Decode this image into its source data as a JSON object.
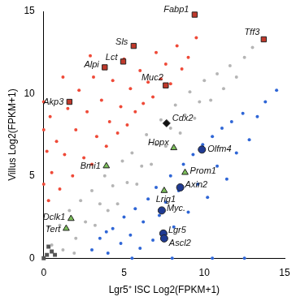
{
  "chart_data": {
    "type": "scatter",
    "x_label": "Lgr5⁺ ISC Log2(FPKM+1)",
    "y_label": "Villus Log2(FPKM+1)",
    "xlim": [
      0,
      15
    ],
    "ylim": [
      0,
      15
    ],
    "xticks": [
      0,
      5,
      10,
      15
    ],
    "yticks": [
      0,
      5,
      10,
      15
    ],
    "grid": false,
    "series": [
      {
        "color": "#ef4a38",
        "marker": "circle",
        "values": [
          [
            0.3,
            3.5
          ],
          [
            0.5,
            5.2
          ],
          [
            0.8,
            7.1
          ],
          [
            0.4,
            8.6
          ],
          [
            1.0,
            4.2
          ],
          [
            1.3,
            6.3
          ],
          [
            1.5,
            9.1
          ],
          [
            1.8,
            5.0
          ],
          [
            2.0,
            7.8
          ],
          [
            2.2,
            10.2
          ],
          [
            2.5,
            6.1
          ],
          [
            2.7,
            8.9
          ],
          [
            3.0,
            5.7
          ],
          [
            3.1,
            11.0
          ],
          [
            3.3,
            7.4
          ],
          [
            3.6,
            9.6
          ],
          [
            3.9,
            6.8
          ],
          [
            4.1,
            8.3
          ],
          [
            4.3,
            10.8
          ],
          [
            4.6,
            7.6
          ],
          [
            4.8,
            9.2
          ],
          [
            5.0,
            12.1
          ],
          [
            5.2,
            8.1
          ],
          [
            5.4,
            10.3
          ],
          [
            5.7,
            8.9
          ],
          [
            6.0,
            11.4
          ],
          [
            6.2,
            9.4
          ],
          [
            6.5,
            10.7
          ],
          [
            6.8,
            9.8
          ],
          [
            7.0,
            12.5
          ],
          [
            7.3,
            10.9
          ],
          [
            7.6,
            11.8
          ],
          [
            7.9,
            10.6
          ],
          [
            8.3,
            12.9
          ],
          [
            8.6,
            11.5
          ],
          [
            9.0,
            12.2
          ],
          [
            9.5,
            13.4
          ],
          [
            2.9,
            12.3
          ],
          [
            1.2,
            11.0
          ],
          [
            0.2,
            6.5
          ],
          [
            0.0,
            9.5
          ],
          [
            0.0,
            4.5
          ],
          [
            0.0,
            7.8
          ]
        ]
      },
      {
        "color": "#b5b5b5",
        "marker": "circle",
        "values": [
          [
            0.5,
            0.8
          ],
          [
            1.0,
            2.0
          ],
          [
            1.2,
            0.5
          ],
          [
            1.6,
            2.9
          ],
          [
            2.0,
            1.2
          ],
          [
            2.3,
            3.5
          ],
          [
            2.6,
            2.2
          ],
          [
            3.0,
            4.1
          ],
          [
            3.2,
            2.0
          ],
          [
            3.5,
            3.3
          ],
          [
            3.8,
            5.0
          ],
          [
            4.0,
            2.9
          ],
          [
            4.3,
            4.4
          ],
          [
            4.6,
            3.3
          ],
          [
            4.9,
            5.9
          ],
          [
            5.2,
            4.6
          ],
          [
            5.5,
            6.4
          ],
          [
            5.8,
            4.5
          ],
          [
            6.1,
            5.6
          ],
          [
            6.4,
            7.5
          ],
          [
            6.7,
            5.7
          ],
          [
            7.0,
            6.9
          ],
          [
            7.3,
            8.4
          ],
          [
            7.6,
            6.8
          ],
          [
            7.9,
            7.9
          ],
          [
            8.2,
            9.3
          ],
          [
            8.5,
            7.6
          ],
          [
            8.8,
            8.7
          ],
          [
            9.1,
            10.1
          ],
          [
            9.4,
            8.5
          ],
          [
            9.7,
            9.5
          ],
          [
            10.0,
            10.8
          ],
          [
            10.4,
            9.6
          ],
          [
            10.8,
            11.2
          ],
          [
            11.2,
            10.3
          ],
          [
            11.6,
            11.7
          ],
          [
            12.0,
            11.0
          ],
          [
            12.5,
            12.2
          ],
          [
            13.0,
            12.8
          ],
          [
            0.3,
            1.9
          ],
          [
            1.9,
            0.3
          ]
        ]
      },
      {
        "color": "#2f66d6",
        "marker": "circle",
        "values": [
          [
            3.0,
            0.5
          ],
          [
            3.5,
            1.2
          ],
          [
            4.0,
            0.3
          ],
          [
            4.3,
            1.8
          ],
          [
            4.8,
            0.9
          ],
          [
            5.0,
            2.5
          ],
          [
            5.4,
            1.4
          ],
          [
            5.7,
            3.0
          ],
          [
            6.0,
            0.6
          ],
          [
            6.2,
            2.2
          ],
          [
            6.5,
            3.6
          ],
          [
            6.8,
            1.1
          ],
          [
            7.0,
            4.3
          ],
          [
            7.2,
            2.6
          ],
          [
            7.6,
            3.4
          ],
          [
            7.9,
            5.0
          ],
          [
            8.1,
            1.9
          ],
          [
            8.4,
            4.1
          ],
          [
            8.7,
            5.7
          ],
          [
            9.0,
            2.8
          ],
          [
            9.3,
            6.3
          ],
          [
            9.6,
            4.5
          ],
          [
            9.9,
            6.9
          ],
          [
            10.2,
            3.7
          ],
          [
            10.5,
            7.4
          ],
          [
            10.8,
            5.6
          ],
          [
            11.1,
            7.9
          ],
          [
            11.4,
            4.8
          ],
          [
            11.7,
            8.3
          ],
          [
            12.0,
            6.4
          ],
          [
            12.4,
            8.8
          ],
          [
            12.8,
            7.2
          ],
          [
            13.3,
            8.6
          ],
          [
            13.8,
            9.5
          ],
          [
            14.5,
            10.2
          ],
          [
            5.5,
            0.0
          ],
          [
            8.0,
            0.0
          ],
          [
            10.5,
            0.0
          ],
          [
            12.5,
            0.0
          ],
          [
            3.9,
            1.6
          ]
        ]
      },
      {
        "color": "#555555",
        "marker": "square",
        "values": [
          [
            0.2,
            0.2
          ],
          [
            0.5,
            0.4
          ],
          [
            0.3,
            0.7
          ],
          [
            0.7,
            0.2
          ],
          [
            0.0,
            0.0
          ]
        ]
      },
      {
        "color": "#c0392b",
        "marker": "square",
        "labels": [
          "Fabp1",
          "Tff3",
          "Sls",
          "Lct",
          "Alpi",
          "Muc2",
          "Akp3"
        ],
        "values": [
          [
            9.4,
            14.8
          ],
          [
            13.7,
            13.3
          ],
          [
            5.6,
            12.9
          ],
          [
            4.95,
            11.95
          ],
          [
            3.8,
            11.6
          ],
          [
            7.6,
            10.5
          ],
          [
            1.6,
            9.5
          ]
        ]
      },
      {
        "color": "#111111",
        "marker": "diamond",
        "labels": [
          "Cdx2"
        ],
        "values": [
          [
            7.65,
            8.2
          ]
        ]
      },
      {
        "color": "#7cbf5a",
        "marker": "triangle",
        "labels": [
          "Hopx",
          "Bmi1",
          "Prom1",
          "Lrig1",
          "Dclk1",
          "Tert"
        ],
        "values": [
          [
            8.1,
            6.7
          ],
          [
            3.9,
            5.6
          ],
          [
            8.8,
            5.2
          ],
          [
            7.5,
            4.1
          ],
          [
            1.7,
            2.4
          ],
          [
            1.4,
            1.8
          ]
        ]
      },
      {
        "color": "#1f3a93",
        "marker": "circle",
        "labels": [
          "Olfm4",
          "Axin2",
          "Myc.",
          "Lgr5",
          "Ascl2"
        ],
        "values": [
          [
            9.85,
            6.6
          ],
          [
            8.5,
            4.3
          ],
          [
            7.35,
            2.9
          ],
          [
            7.45,
            1.5
          ],
          [
            7.5,
            1.2
          ]
        ]
      }
    ]
  }
}
